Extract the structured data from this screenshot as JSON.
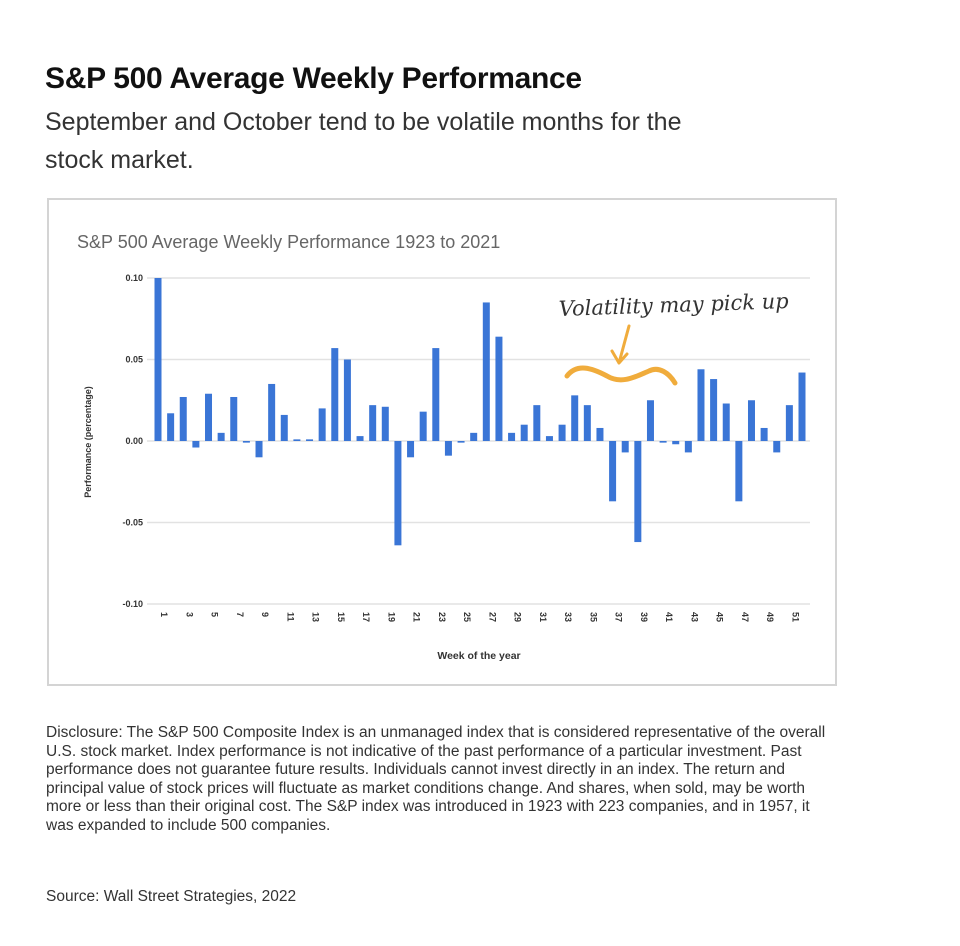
{
  "header": {
    "title": "S&P 500 Average Weekly Performance",
    "subtitle": "September and October tend to be volatile months for the stock market."
  },
  "chart_data": {
    "type": "bar",
    "title": "S&P 500 Average Weekly Performance 1923 to 2021",
    "xlabel": "Week of the year",
    "ylabel": "Performance (percentage)",
    "ylim": [
      -0.1,
      0.1
    ],
    "yticks": [
      "0.10",
      "0.05",
      "0.00",
      "-0.05",
      "-0.10"
    ],
    "ytick_values": [
      0.1,
      0.05,
      0.0,
      -0.05,
      -0.1
    ],
    "grid": true,
    "bar_color": "#3a75d6",
    "categories": [
      "1",
      "2",
      "3",
      "4",
      "5",
      "6",
      "7",
      "8",
      "9",
      "10",
      "11",
      "12",
      "13",
      "14",
      "15",
      "16",
      "17",
      "18",
      "19",
      "20",
      "21",
      "22",
      "23",
      "24",
      "25",
      "26",
      "27",
      "28",
      "29",
      "30",
      "31",
      "32",
      "33",
      "34",
      "35",
      "36",
      "37",
      "38",
      "39",
      "40",
      "41",
      "42",
      "43",
      "44",
      "45",
      "46",
      "47",
      "48",
      "49",
      "50",
      "51",
      "52"
    ],
    "xtick_labels": [
      "1",
      "3",
      "5",
      "7",
      "9",
      "11",
      "13",
      "15",
      "17",
      "19",
      "21",
      "23",
      "25",
      "27",
      "29",
      "31",
      "33",
      "35",
      "37",
      "39",
      "41",
      "43",
      "45",
      "47",
      "49",
      "51"
    ],
    "values": [
      0.1,
      0.017,
      0.027,
      -0.004,
      0.029,
      0.005,
      0.027,
      -0.001,
      -0.01,
      0.035,
      0.016,
      0.001,
      0.001,
      0.02,
      0.057,
      0.05,
      0.003,
      0.022,
      0.021,
      -0.064,
      -0.01,
      0.018,
      0.057,
      -0.009,
      -0.001,
      0.005,
      0.085,
      0.064,
      0.005,
      0.01,
      0.022,
      0.003,
      0.01,
      0.028,
      0.022,
      0.008,
      -0.037,
      -0.007,
      -0.062,
      0.025,
      -0.001,
      -0.002,
      -0.007,
      0.044,
      0.038,
      0.023,
      -0.037,
      0.025,
      0.008,
      -0.007,
      0.022,
      0.042
    ],
    "annotation": {
      "text": "Volatility may pick up",
      "color": "#f0ac3c",
      "near_weeks": "35-41"
    }
  },
  "footer": {
    "disclosure": "Disclosure: The S&P 500 Composite Index is an unmanaged index that is considered representative of the overall U.S. stock market. Index performance is not indicative of the past performance of a particular investment. Past performance does not guarantee future results. Individuals cannot invest directly in an index. The return and principal value of stock prices will fluctuate as market conditions change. And shares, when sold, may be worth more or less than their original cost. The S&P index was introduced in 1923 with 223 companies, and in 1957, it was expanded to include 500 companies.",
    "source": "Source: Wall Street Strategies, 2022"
  }
}
